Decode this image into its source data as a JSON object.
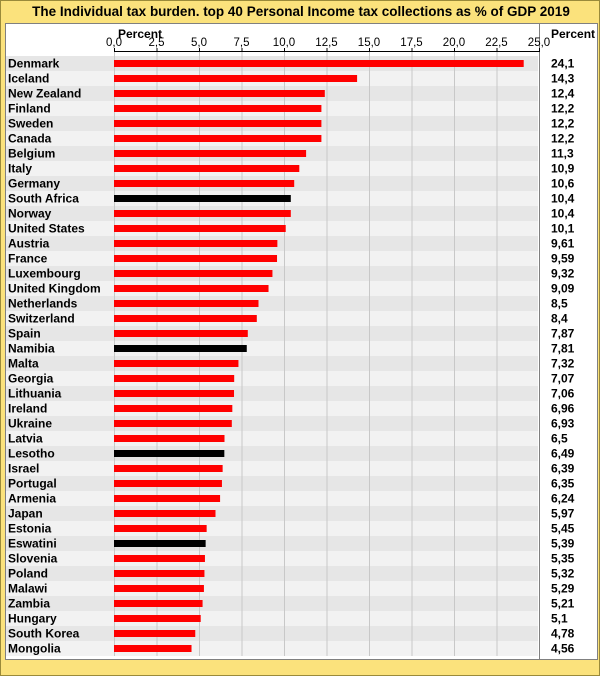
{
  "chart_data": {
    "type": "bar",
    "orientation": "horizontal",
    "title": "The Individual tax burden. top 40 Personal Income tax collections as % of GDP 2019",
    "axis_label": "Percent",
    "value_column_header": "Percent",
    "xlim": [
      0,
      25
    ],
    "ticks": [
      "0,0",
      "2,5",
      "5,0",
      "7,5",
      "10,0",
      "12,5",
      "15,0",
      "17,5",
      "20,0",
      "22,5",
      "25,0"
    ],
    "tick_values": [
      0,
      2.5,
      5,
      7.5,
      10,
      12.5,
      15,
      17.5,
      20,
      22.5,
      25
    ],
    "colors": {
      "default": "#ff0000",
      "highlight": "#000000"
    },
    "grid": true,
    "categories": [
      "Denmark",
      "Iceland",
      "New Zealand",
      "Finland",
      "Sweden",
      "Canada",
      "Belgium",
      "Italy",
      "Germany",
      "South Africa",
      "Norway",
      "United States",
      "Austria",
      "France",
      "Luxembourg",
      "United Kingdom",
      "Netherlands",
      "Switzerland",
      "Spain",
      "Namibia",
      "Malta",
      "Georgia",
      "Lithuania",
      "Ireland",
      "Ukraine",
      "Latvia",
      "Lesotho",
      "Israel",
      "Portugal",
      "Armenia",
      "Japan",
      "Estonia",
      "Eswatini",
      "Slovenia",
      "Poland",
      "Malawi",
      "Zambia",
      "Hungary",
      "South Korea",
      "Mongolia"
    ],
    "values": [
      24.1,
      14.3,
      12.4,
      12.2,
      12.2,
      12.2,
      11.3,
      10.9,
      10.6,
      10.4,
      10.4,
      10.1,
      9.61,
      9.59,
      9.32,
      9.09,
      8.5,
      8.4,
      7.87,
      7.81,
      7.32,
      7.07,
      7.06,
      6.96,
      6.93,
      6.5,
      6.49,
      6.39,
      6.35,
      6.24,
      5.97,
      5.45,
      5.39,
      5.35,
      5.32,
      5.29,
      5.21,
      5.1,
      4.78,
      4.56
    ],
    "value_labels": [
      "24,1",
      "14,3",
      "12,4",
      "12,2",
      "12,2",
      "12,2",
      "11,3",
      "10,9",
      "10,6",
      "10,4",
      "10,4",
      "10,1",
      "9,61",
      "9,59",
      "9,32",
      "9,09",
      "8,5",
      "8,4",
      "7,87",
      "7,81",
      "7,32",
      "7,07",
      "7,06",
      "6,96",
      "6,93",
      "6,5",
      "6,49",
      "6,39",
      "6,35",
      "6,24",
      "5,97",
      "5,45",
      "5,39",
      "5,35",
      "5,32",
      "5,29",
      "5,21",
      "5,1",
      "4,78",
      "4,56"
    ],
    "highlighted": [
      "South Africa",
      "Namibia",
      "Lesotho",
      "Eswatini"
    ]
  }
}
